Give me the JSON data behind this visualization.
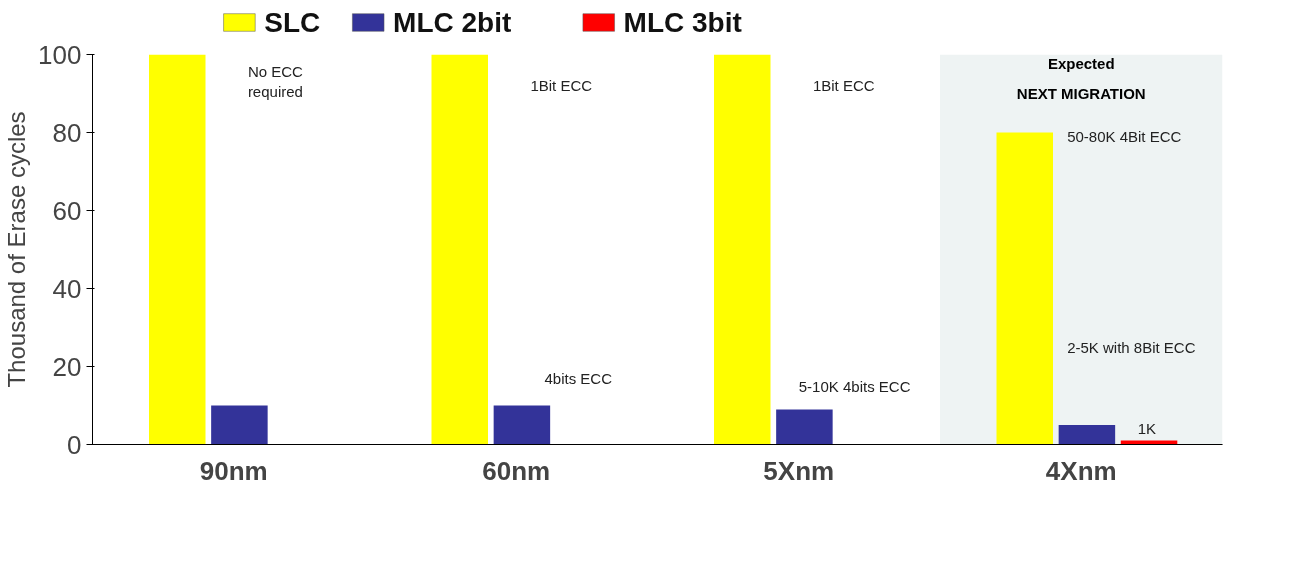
{
  "chart_data": {
    "type": "bar",
    "ylabel": "Thousand of Erase cycles",
    "categories": [
      "90nm",
      "60nm",
      "5Xnm",
      "4Xnm"
    ],
    "series": [
      {
        "name": "SLC",
        "color": "#ffff00",
        "values": [
          100,
          100,
          100,
          80
        ]
      },
      {
        "name": "MLC 2bit",
        "color": "#333399",
        "values": [
          10,
          10,
          9,
          5
        ]
      },
      {
        "name": "MLC 3bit",
        "color": "#ff0000",
        "values": [
          null,
          null,
          null,
          1
        ]
      }
    ],
    "ylim": [
      0,
      100
    ],
    "yticks": [
      0,
      20,
      40,
      60,
      80,
      100
    ],
    "legend": "top",
    "bands": [
      {
        "axis": "x",
        "from": "4Xnm",
        "to": "4Xnm",
        "label": "Expected\nNEXT MIGRATION",
        "color": "#eef3f3"
      }
    ],
    "annotations": [
      "No ECC\nrequired",
      "1Bit ECC",
      "4bits ECC",
      "1Bit ECC",
      "5-10K 4bits ECC",
      "50-80K 4Bit ECC",
      "2-5K with 8Bit ECC",
      "1K"
    ]
  }
}
